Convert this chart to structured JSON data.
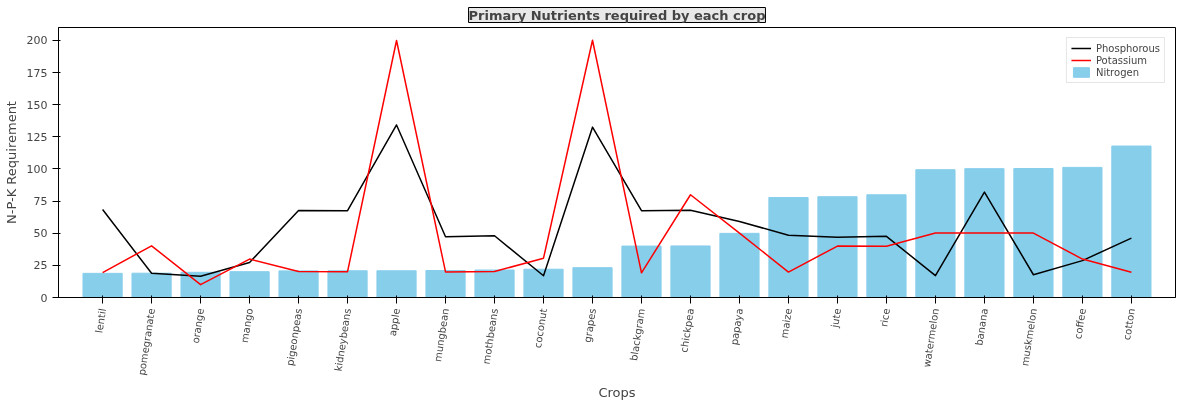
{
  "chart_data": {
    "type": "bar",
    "title": "Primary Nutrients required by each crop",
    "xlabel": "Crops",
    "ylabel": "N-P-K Requirement",
    "categories": [
      "lentil",
      "pomegranate",
      "orange",
      "mango",
      "pigeonpeas",
      "kidneybeans",
      "apple",
      "mungbean",
      "mothbeans",
      "coconut",
      "grapes",
      "blackgram",
      "chickpea",
      "papaya",
      "maize",
      "jute",
      "rice",
      "watermelon",
      "banana",
      "muskmelon",
      "coffee",
      "cotton"
    ],
    "series": [
      {
        "name": "Phosphorous",
        "type": "line",
        "color": "#000000",
        "values": [
          68.4,
          18.8,
          16.6,
          27.2,
          67.7,
          67.5,
          134.2,
          47.3,
          48.0,
          16.9,
          132.5,
          67.5,
          67.8,
          59.1,
          48.4,
          46.9,
          47.6,
          17.0,
          82.0,
          17.7,
          28.7,
          46.2
        ]
      },
      {
        "name": "Potassium",
        "type": "line",
        "color": "#ff0000",
        "values": [
          19.4,
          40.2,
          10.0,
          29.9,
          20.3,
          20.1,
          199.9,
          19.9,
          20.2,
          30.6,
          200.1,
          19.2,
          79.9,
          50.0,
          19.8,
          40.0,
          39.9,
          50.2,
          50.1,
          50.1,
          29.9,
          19.6
        ]
      },
      {
        "name": "Nitrogen",
        "color": "#87ceeb",
        "values": [
          18.8,
          18.9,
          19.6,
          20.1,
          20.7,
          20.8,
          20.8,
          21.0,
          21.4,
          22.0,
          23.2,
          40.0,
          40.1,
          49.9,
          77.8,
          78.4,
          79.9,
          99.4,
          100.2,
          100.3,
          101.2,
          117.8
        ]
      }
    ],
    "ylim": [
      0,
      210
    ],
    "yticks": [
      0,
      25,
      50,
      75,
      100,
      125,
      150,
      175,
      200
    ],
    "legend": "top right",
    "grid": false
  }
}
